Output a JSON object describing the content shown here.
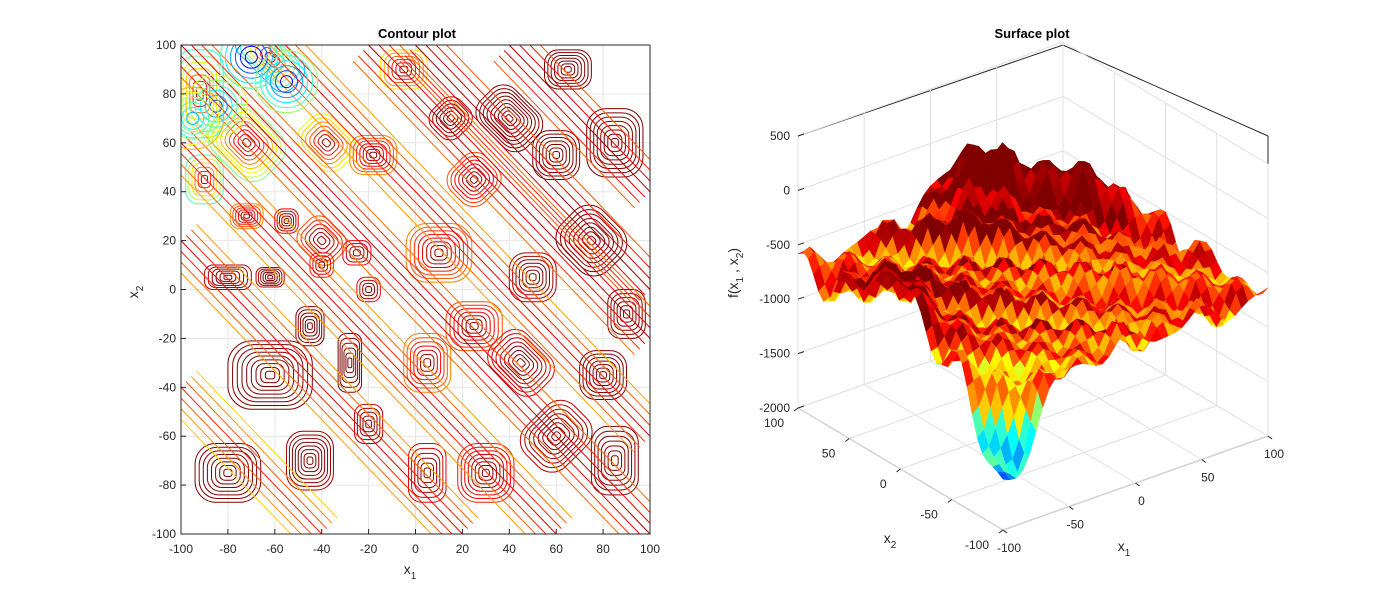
{
  "chart_data": [
    {
      "type": "contour",
      "title": "Contour plot",
      "xlabel": "x",
      "xlabel_sub": "1",
      "ylabel": "x",
      "ylabel_sub": "2",
      "xlim": [
        -100,
        100
      ],
      "ylim": [
        -100,
        100
      ],
      "xticks": [
        "-100",
        "-80",
        "-60",
        "-40",
        "-20",
        "0",
        "20",
        "40",
        "60",
        "80",
        "100"
      ],
      "yticks": [
        "100",
        "80",
        "60",
        "40",
        "20",
        "0",
        "-20",
        "-40",
        "-60",
        "-80",
        "-100"
      ],
      "grid": true,
      "colormap": "jet",
      "low_color": "#00008f",
      "high_color": "#800000"
    },
    {
      "type": "surface",
      "title": "Surface plot",
      "xlabel": "x",
      "xlabel_sub": "1",
      "ylabel": "x",
      "ylabel_sub": "2",
      "zlabel_parts": [
        "f(x",
        "1",
        " , x",
        "2",
        ")"
      ],
      "xlim": [
        -100,
        100
      ],
      "ylim": [
        -100,
        100
      ],
      "zlim": [
        -2000,
        500
      ],
      "xticks": [
        "-100",
        "-50",
        "0",
        "50",
        "100"
      ],
      "yticks": [
        "100",
        "50",
        "0",
        "-50",
        "-100"
      ],
      "zticks": [
        "500",
        "0",
        "-500",
        "-1000",
        "-1500",
        "-2000"
      ],
      "grid": true,
      "colormap": "jet"
    }
  ]
}
